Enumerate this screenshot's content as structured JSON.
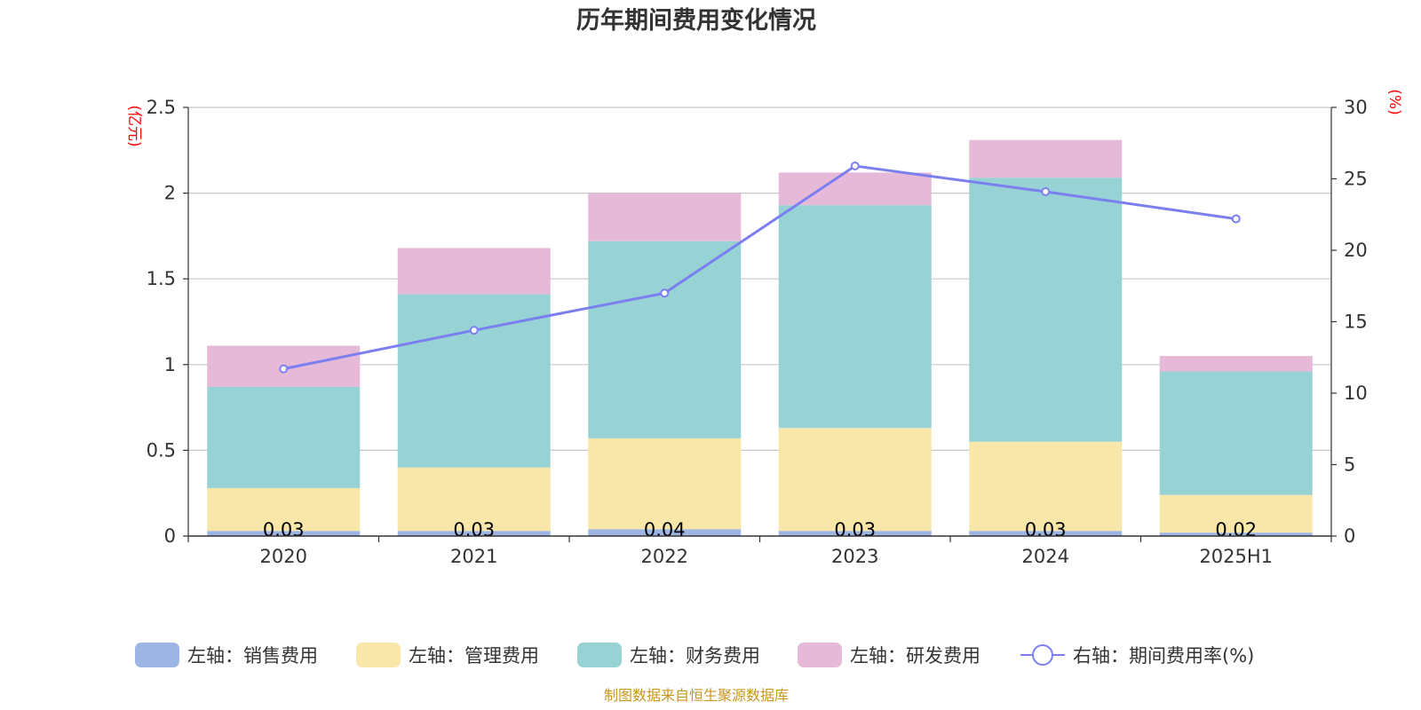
{
  "chart_data": {
    "type": "bar",
    "title": "历年期间费用变化情况",
    "categories": [
      "2020",
      "2021",
      "2022",
      "2023",
      "2024",
      "2025H1"
    ],
    "left_axis": {
      "unit_label": "(亿元)",
      "ylim": [
        0,
        2.5
      ],
      "ticks": [
        "0",
        "0.5",
        "1",
        "1.5",
        "2",
        "2.5"
      ],
      "tick_values": [
        0,
        0.5,
        1,
        1.5,
        2,
        2.5
      ]
    },
    "right_axis": {
      "unit_label": "(%)",
      "ylim": [
        0,
        30
      ],
      "ticks": [
        "0",
        "5",
        "10",
        "15",
        "20",
        "25",
        "30"
      ],
      "tick_values": [
        0,
        5,
        10,
        15,
        20,
        25,
        30
      ]
    },
    "grid": true,
    "legend_position": "bottom",
    "series": [
      {
        "name": "左轴：销售费用",
        "type": "bar",
        "axis": "left",
        "color": "#9db5e3",
        "values": [
          0.03,
          0.03,
          0.04,
          0.03,
          0.03,
          0.02
        ],
        "labels": [
          "0.03",
          "0.03",
          "0.04",
          "0.03",
          "0.03",
          "0.02"
        ]
      },
      {
        "name": "左轴：管理费用",
        "type": "bar",
        "axis": "left",
        "color": "#f8e7a8",
        "values": [
          0.25,
          0.37,
          0.53,
          0.6,
          0.52,
          0.22
        ]
      },
      {
        "name": "左轴：财务费用",
        "type": "bar",
        "axis": "left",
        "color": "#97d3d4",
        "values": [
          0.59,
          1.01,
          1.15,
          1.3,
          1.54,
          0.72
        ]
      },
      {
        "name": "左轴：研发费用",
        "type": "bar",
        "axis": "left",
        "color": "#e7b9d9",
        "values": [
          0.24,
          0.27,
          0.28,
          0.19,
          0.22,
          0.09
        ]
      },
      {
        "name": "右轴：期间费用率(%)",
        "type": "line",
        "axis": "right",
        "color": "#7b7ff0",
        "values": [
          11.7,
          14.4,
          17.0,
          25.9,
          24.1,
          22.2
        ]
      }
    ],
    "source": "制图数据来自恒生聚源数据库"
  }
}
